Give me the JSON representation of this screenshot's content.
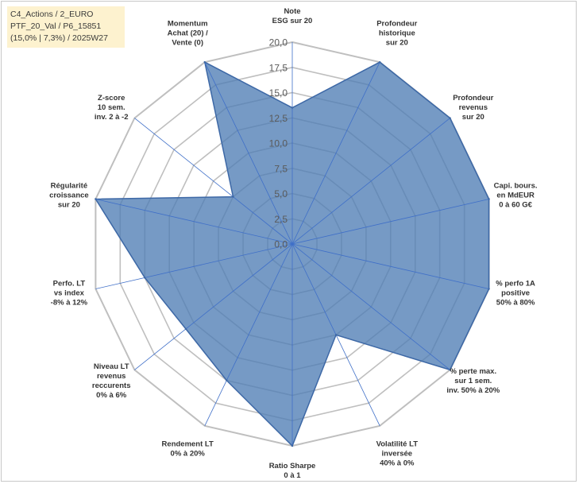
{
  "title_box": {
    "line1": "C4_Actions / 2_EURO",
    "line2": "PTF_20_Val / P6_15851",
    "line3": "(15,0% | 7,3%) / 2025W27"
  },
  "chart_data": {
    "type": "radar",
    "title": "",
    "rmax": 20.0,
    "ticks": [
      "0,0",
      "2,5",
      "5,0",
      "7,5",
      "10,0",
      "12,5",
      "15,0",
      "17,5",
      "20,0"
    ],
    "tick_values": [
      0,
      2.5,
      5,
      7.5,
      10,
      12.5,
      15,
      17.5,
      20
    ],
    "axes": [
      {
        "label": [
          "Note",
          "ESG sur 20"
        ],
        "value": 13.5
      },
      {
        "label": [
          "Profondeur",
          "historique",
          "sur 20"
        ],
        "value": 20
      },
      {
        "label": [
          "Profondeur",
          "revenus",
          "sur 20"
        ],
        "value": 20
      },
      {
        "label": [
          "Capi. bours.",
          "en MdEUR",
          "0 à 60 G€"
        ],
        "value": 20
      },
      {
        "label": [
          "% perfo 1A",
          "positive",
          "50% à 80%"
        ],
        "value": 20
      },
      {
        "label": [
          "% perte max.",
          "sur 1 sem.",
          "inv. 50% à 20%"
        ],
        "value": 20
      },
      {
        "label": [
          "Volatilité LT",
          "inversée",
          "40% à 0%"
        ],
        "value": 10
      },
      {
        "label": [
          "Ratio Sharpe",
          "0 à 1"
        ],
        "value": 20
      },
      {
        "label": [
          "Rendement LT",
          "0% à 20%"
        ],
        "value": 15
      },
      {
        "label": [
          "Niveau LT",
          "revenus",
          "reccurents",
          "0% à 6%"
        ],
        "value": 13.5
      },
      {
        "label": [
          "Perfo. LT",
          "vs index",
          "-8% à 12%"
        ],
        "value": 15
      },
      {
        "label": [
          "Régularité",
          "croissance",
          "sur 20"
        ],
        "value": 20
      },
      {
        "label": [
          "Z-score",
          "10 sem.",
          "inv. 2 à -2"
        ],
        "value": 7.5
      },
      {
        "label": [
          "Momentum",
          "Achat (20) /",
          "Vente (0)"
        ],
        "value": 20
      }
    ],
    "colors": {
      "fill": "#4f7eb5",
      "stroke": "#3d68a6",
      "grid": "#bfbfbf",
      "spoke": "#3f6fc8"
    },
    "grid": true,
    "legend": "none"
  }
}
